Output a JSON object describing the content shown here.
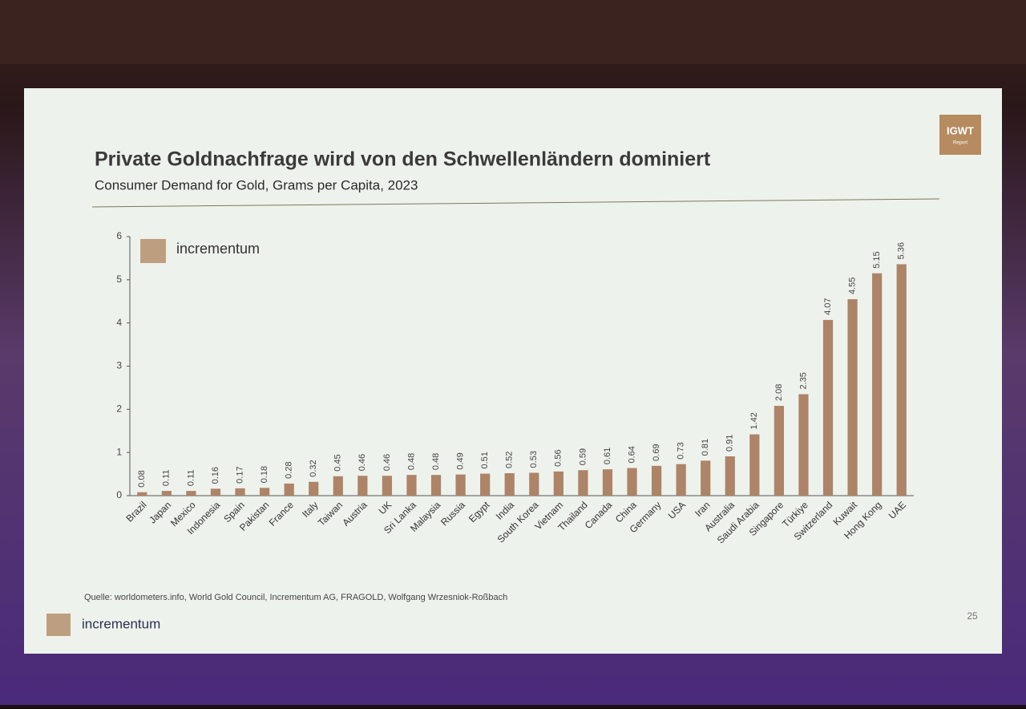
{
  "chart_data": {
    "type": "bar",
    "title": "Private Goldnachfrage wird von den Schwellenländern dominiert",
    "subtitle": "Consumer Demand for Gold, Grams per Capita, 2023",
    "categories": [
      "Brazil",
      "Japan",
      "Mexico",
      "Indonesia",
      "Spain",
      "Pakistan",
      "France",
      "Italy",
      "Taiwan",
      "Austria",
      "UK",
      "Sri Lanka",
      "Malaysia",
      "Russia",
      "Egypt",
      "India",
      "South Korea",
      "Vietnam",
      "Thailand",
      "Canada",
      "China",
      "Germany",
      "USA",
      "Iran",
      "Australia",
      "Saudi Arabia",
      "Singapore",
      "Türkiye",
      "Switzerland",
      "Kuwait",
      "Hong Kong",
      "UAE"
    ],
    "values": [
      0.08,
      0.11,
      0.11,
      0.16,
      0.17,
      0.18,
      0.28,
      0.32,
      0.45,
      0.46,
      0.46,
      0.48,
      0.48,
      0.49,
      0.51,
      0.52,
      0.53,
      0.56,
      0.59,
      0.61,
      0.64,
      0.69,
      0.73,
      0.81,
      0.91,
      1.42,
      2.08,
      2.35,
      4.07,
      4.55,
      5.15,
      5.36
    ],
    "color": "#ad8468",
    "ylim": [
      0,
      6
    ],
    "yticks": [
      0,
      1,
      2,
      3,
      4,
      5,
      6
    ],
    "grid": false
  },
  "slide": {
    "badge": "IGWT",
    "badge_sub": "Report",
    "brand": "incrementum",
    "source": "Quelle: worldometers.info, World Gold Council, Incrementum AG, FRAGOLD, Wolfgang Wrzesniok-Roßbach",
    "page": "25"
  }
}
